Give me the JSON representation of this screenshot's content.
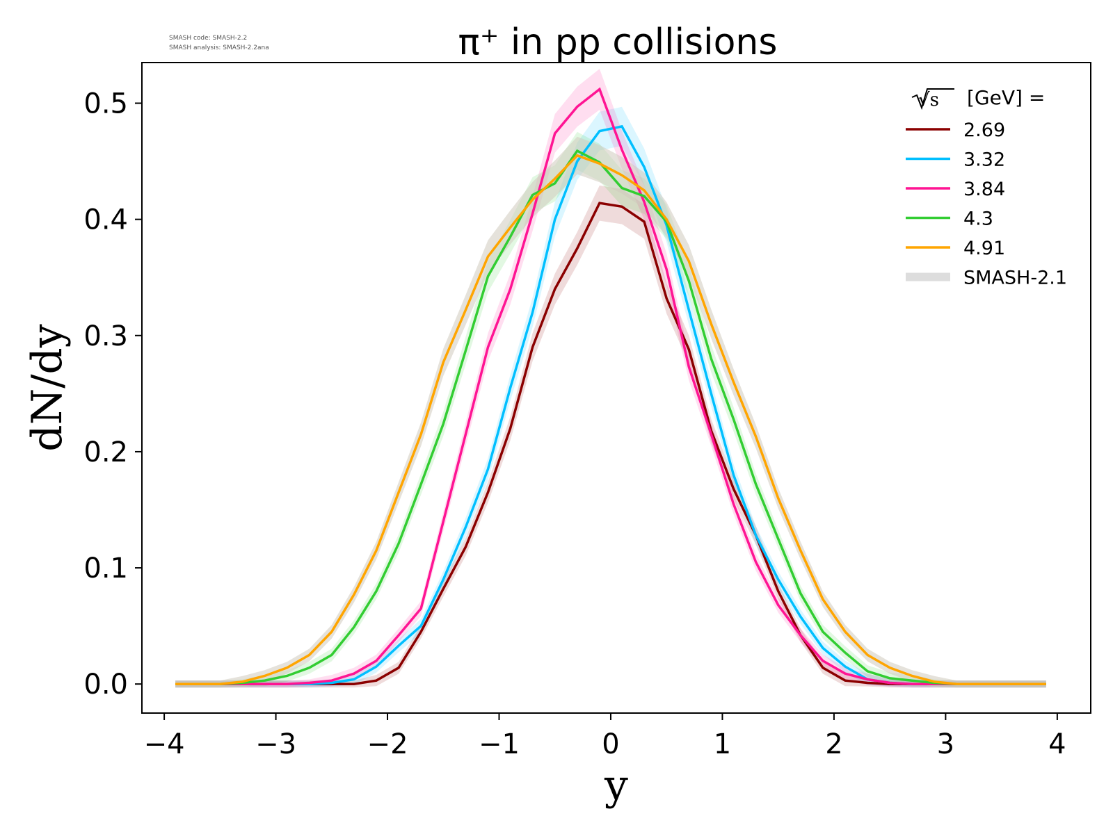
{
  "chart_data": {
    "type": "line",
    "title": "π⁺ in pp collisions",
    "xlabel": "y",
    "ylabel": "dN/dy",
    "xlim": [
      -4.2,
      4.3
    ],
    "ylim": [
      -0.025,
      0.535
    ],
    "xticks": [
      -4,
      -3,
      -2,
      -1,
      0,
      1,
      2,
      3,
      4
    ],
    "xtick_labels": [
      "−4",
      "−3",
      "−2",
      "−1",
      "0",
      "1",
      "2",
      "3",
      "4"
    ],
    "yticks": [
      0.0,
      0.1,
      0.2,
      0.3,
      0.4,
      0.5
    ],
    "ytick_labels": [
      "0.0",
      "0.1",
      "0.2",
      "0.3",
      "0.4",
      "0.5"
    ],
    "grid": false,
    "legend_placement": "top-right",
    "legend_title": "[GeV] =",
    "legend_title_symbol": "√s",
    "version_info": [
      "SMASH code:      SMASH-2.2",
      "SMASH analysis: SMASH-2.2ana"
    ],
    "x": [
      -3.9,
      -3.7,
      -3.5,
      -3.3,
      -3.1,
      -2.9,
      -2.7,
      -2.5,
      -2.3,
      -2.1,
      -1.9,
      -1.7,
      -1.5,
      -1.3,
      -1.1,
      -0.9,
      -0.7,
      -0.5,
      -0.3,
      -0.1,
      0.1,
      0.3,
      0.5,
      0.7,
      0.9,
      1.1,
      1.3,
      1.5,
      1.7,
      1.9,
      2.1,
      2.3,
      2.5,
      2.7,
      2.9,
      3.1,
      3.3,
      3.5,
      3.7,
      3.9
    ],
    "series": [
      {
        "name": "2.69",
        "color": "#8b0000",
        "values": [
          0,
          0,
          0,
          0,
          0,
          0,
          0,
          0,
          0,
          0.003,
          0.014,
          0.045,
          0.082,
          0.118,
          0.165,
          0.22,
          0.29,
          0.34,
          0.375,
          0.414,
          0.411,
          0.398,
          0.332,
          0.288,
          0.218,
          0.168,
          0.128,
          0.08,
          0.042,
          0.014,
          0.003,
          0.001,
          0,
          0,
          0,
          0,
          0,
          0,
          0,
          0
        ]
      },
      {
        "name": "3.32",
        "color": "#00bfff",
        "values": [
          0,
          0,
          0,
          0,
          0,
          0,
          0,
          0.001,
          0.004,
          0.015,
          0.033,
          0.05,
          0.09,
          0.135,
          0.185,
          0.255,
          0.32,
          0.4,
          0.45,
          0.476,
          0.48,
          0.445,
          0.395,
          0.322,
          0.25,
          0.18,
          0.128,
          0.09,
          0.058,
          0.031,
          0.015,
          0.004,
          0.001,
          0,
          0,
          0,
          0,
          0,
          0,
          0
        ]
      },
      {
        "name": "3.84",
        "color": "#ff1493",
        "values": [
          0,
          0,
          0,
          0,
          0,
          0,
          0.001,
          0.003,
          0.009,
          0.02,
          0.042,
          0.065,
          0.14,
          0.215,
          0.29,
          0.34,
          0.405,
          0.474,
          0.497,
          0.512,
          0.46,
          0.415,
          0.357,
          0.273,
          0.215,
          0.155,
          0.105,
          0.068,
          0.042,
          0.02,
          0.009,
          0.004,
          0.001,
          0,
          0,
          0,
          0,
          0,
          0,
          0
        ]
      },
      {
        "name": "4.3",
        "color": "#32cd32",
        "values": [
          0,
          0,
          0,
          0.001,
          0.003,
          0.007,
          0.014,
          0.025,
          0.049,
          0.08,
          0.121,
          0.172,
          0.224,
          0.287,
          0.351,
          0.385,
          0.421,
          0.431,
          0.459,
          0.449,
          0.427,
          0.42,
          0.398,
          0.347,
          0.28,
          0.228,
          0.172,
          0.125,
          0.078,
          0.045,
          0.027,
          0.011,
          0.005,
          0.003,
          0.001,
          0,
          0,
          0,
          0,
          0
        ]
      },
      {
        "name": "4.91",
        "color": "#ffa500",
        "values": [
          0,
          0,
          0,
          0.002,
          0.007,
          0.014,
          0.025,
          0.045,
          0.077,
          0.115,
          0.165,
          0.215,
          0.277,
          0.322,
          0.368,
          0.393,
          0.417,
          0.435,
          0.455,
          0.448,
          0.438,
          0.425,
          0.4,
          0.364,
          0.31,
          0.26,
          0.213,
          0.16,
          0.115,
          0.073,
          0.045,
          0.025,
          0.014,
          0.007,
          0.002,
          0,
          0,
          0,
          0,
          0
        ]
      }
    ],
    "reference_band": {
      "name": "SMASH-2.1",
      "color": "#dddddd"
    }
  }
}
